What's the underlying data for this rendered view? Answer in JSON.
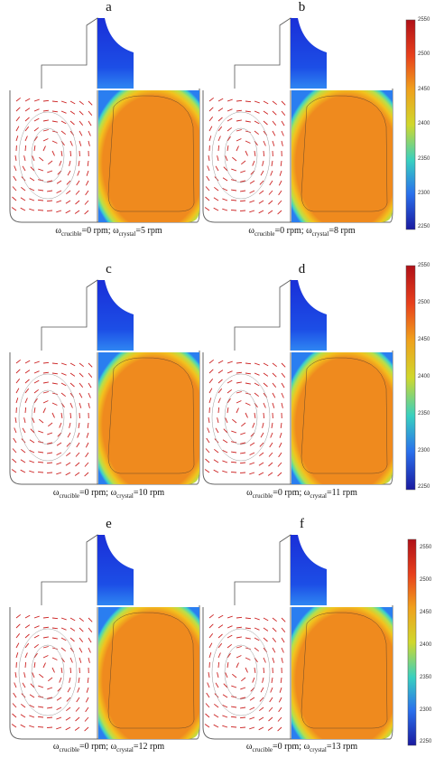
{
  "figure": {
    "panels": [
      {
        "label": "a",
        "crucible_label": "ω",
        "crucible_sub": "crucible",
        "crucible_val": "=0 rpm;",
        "crystal_label": "ω",
        "crystal_sub": "crystal",
        "crystal_val": "=5 rpm"
      },
      {
        "label": "b",
        "crucible_label": "ω",
        "crucible_sub": "crucible",
        "crucible_val": "=0 rpm;",
        "crystal_label": "ω",
        "crystal_sub": "crystal",
        "crystal_val": "=8 rpm"
      },
      {
        "label": "c",
        "crucible_label": "ω",
        "crucible_sub": "crucible",
        "crucible_val": "=0 rpm;",
        "crystal_label": "ω",
        "crystal_sub": "crystal",
        "crystal_val": "=10 rpm"
      },
      {
        "label": "d",
        "crucible_label": "ω",
        "crucible_sub": "crucible",
        "crucible_val": "=0 rpm;",
        "crystal_label": "ω",
        "crystal_sub": "crystal",
        "crystal_val": "=11 rpm"
      },
      {
        "label": "e",
        "crucible_label": "ω",
        "crucible_sub": "crucible",
        "crucible_val": "=0 rpm;",
        "crystal_label": "ω",
        "crystal_sub": "crystal",
        "crystal_val": "=12 rpm"
      },
      {
        "label": "f",
        "crucible_label": "ω",
        "crucible_sub": "crucible",
        "crucible_val": "=0 rpm;",
        "crystal_label": "ω",
        "crystal_sub": "crystal",
        "crystal_val": "=13 rpm"
      }
    ],
    "colorbars": [
      {
        "ticks": [
          "2550",
          "2500",
          "2450",
          "2400",
          "2350",
          "2300",
          "2250"
        ]
      },
      {
        "ticks": [
          "2550",
          "2500",
          "2450",
          "2400",
          "2350",
          "2300",
          "2250"
        ]
      },
      {
        "ticks": [
          "2550",
          "2500",
          "2450",
          "2400",
          "2350",
          "2300",
          "2250"
        ]
      }
    ],
    "colors": {
      "hot": "#ef8a1e",
      "cold": "#1133dd",
      "arrow": "#cc2222",
      "outline": "#666666"
    }
  }
}
